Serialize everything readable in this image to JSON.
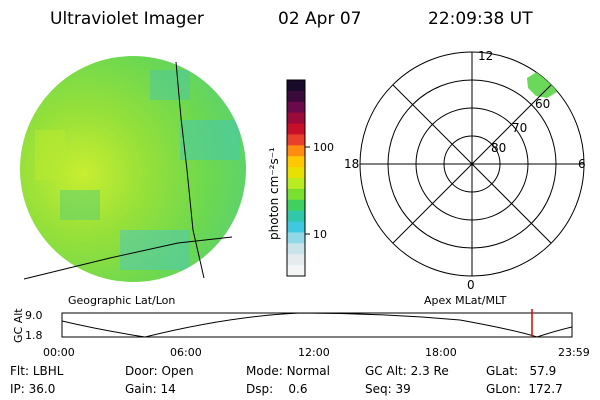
{
  "header": {
    "title": "Ultraviolet Imager",
    "date": "02 Apr 07",
    "time": "22:09:38 UT"
  },
  "colorbar": {
    "unit_label": "photon cm⁻²s⁻¹",
    "ticks": [
      "100",
      "10"
    ],
    "colors": [
      "#1a0a2a",
      "#3a0a3a",
      "#6a0a4a",
      "#9a0a3a",
      "#c8102a",
      "#e8402a",
      "#ff8c10",
      "#ffc800",
      "#e8e000",
      "#b8ec20",
      "#7ae030",
      "#40d060",
      "#30c8a8",
      "#40c8e0",
      "#90d8e8",
      "#c8e4ea",
      "#e4ecee",
      "#f4f6f6"
    ]
  },
  "polar_plot": {
    "mlt_labels": {
      "top": "12",
      "bottom": "0",
      "left": "18",
      "right": "6"
    },
    "lat_labels": [
      "60",
      "70",
      "80"
    ]
  },
  "map_labels": {
    "left": "Geographic Lat/Lon",
    "right": "Apex MLat/MLT"
  },
  "altitude_plot": {
    "axis_label": "GC Alt",
    "y_ticks": [
      "9.0",
      "1.8"
    ],
    "x_ticks": [
      "00:00",
      "06:00",
      "12:00",
      "18:00",
      "23:59"
    ],
    "marker_color": "#e00000"
  },
  "info": {
    "filter": {
      "label": "Flt:",
      "value": "LBHL"
    },
    "ip": {
      "label": "IP:",
      "value": "36.0"
    },
    "door": {
      "label": "Door:",
      "value": "Open"
    },
    "gain": {
      "label": "Gain:",
      "value": "14"
    },
    "mode": {
      "label": "Mode:",
      "value": "Normal"
    },
    "dsp": {
      "label": "Dsp:",
      "value": "0.6"
    },
    "gc_alt": {
      "label": "GC Alt:",
      "value": "2.3 Re"
    },
    "seq": {
      "label": "Seq:",
      "value": "39"
    },
    "glat": {
      "label": "GLat:",
      "value": "57.9"
    },
    "glon": {
      "label": "GLon:",
      "value": "172.7"
    }
  }
}
